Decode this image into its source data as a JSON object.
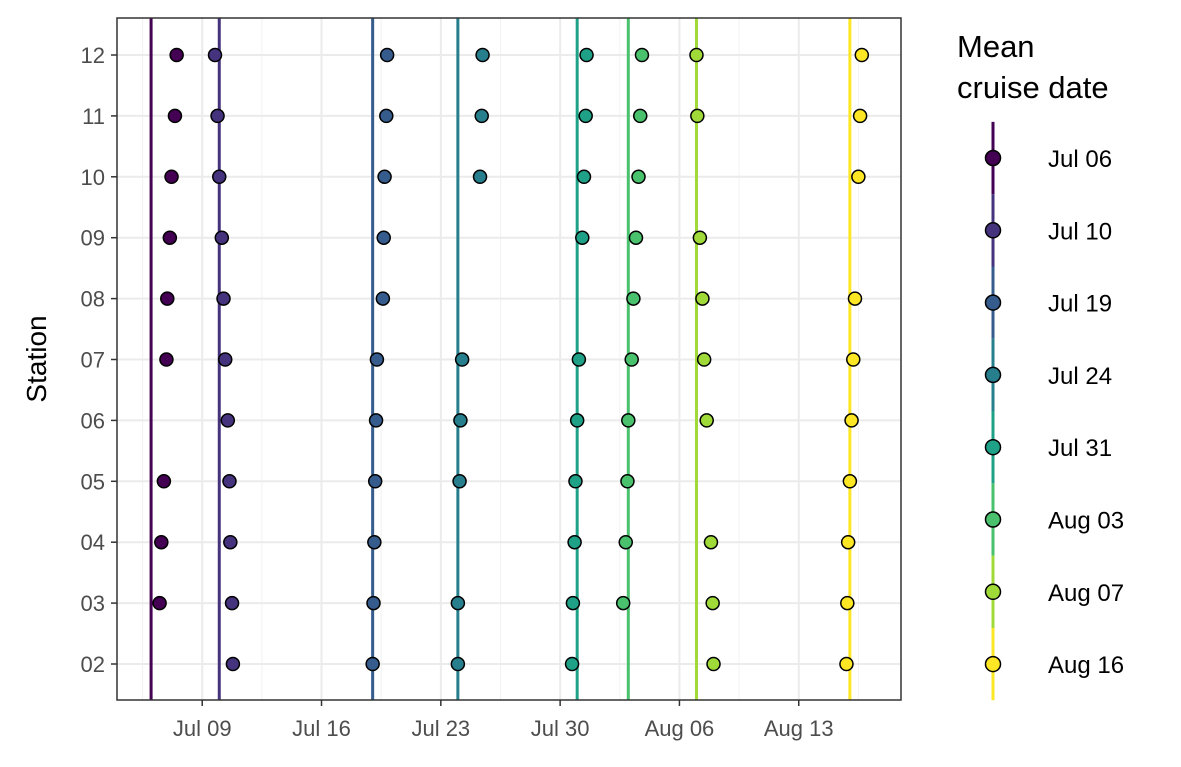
{
  "chart_data": {
    "type": "scatter",
    "ylabel": "Station",
    "xlabel": "",
    "legend_title": [
      "Mean",
      "cruise date"
    ],
    "legend_position": "right",
    "grid": true,
    "x_axis_ticks": [
      "Jul 09",
      "Jul 16",
      "Jul 23",
      "Jul 30",
      "Aug 06",
      "Aug 13"
    ],
    "x_tick_dates": [
      "2021-07-09",
      "2021-07-16",
      "2021-07-23",
      "2021-07-30",
      "2021-08-06",
      "2021-08-13"
    ],
    "xlim": [
      "2021-07-04",
      "2021-08-19"
    ],
    "stations": [
      "02",
      "03",
      "04",
      "05",
      "06",
      "07",
      "08",
      "09",
      "10",
      "11",
      "12"
    ],
    "series": [
      {
        "name": "Jul 06",
        "color": "#440154",
        "mean": "2021-07-06",
        "points": [
          [
            2.5,
            "03"
          ],
          [
            2.6,
            "04"
          ],
          [
            2.75,
            "05"
          ],
          [
            2.9,
            "07"
          ],
          [
            2.95,
            "08"
          ],
          [
            3.1,
            "09"
          ],
          [
            3.2,
            "10"
          ],
          [
            3.4,
            "11"
          ],
          [
            3.5,
            "12"
          ]
        ]
      },
      {
        "name": "Jul 10",
        "color": "#46337e",
        "mean": "2021-07-10",
        "points": [
          [
            6.8,
            "02"
          ],
          [
            6.75,
            "03"
          ],
          [
            6.65,
            "04"
          ],
          [
            6.6,
            "05"
          ],
          [
            6.5,
            "06"
          ],
          [
            6.35,
            "07"
          ],
          [
            6.25,
            "08"
          ],
          [
            6.15,
            "09"
          ],
          [
            6.0,
            "10"
          ],
          [
            5.9,
            "11"
          ],
          [
            5.75,
            "12"
          ]
        ]
      },
      {
        "name": "Jul 19",
        "color": "#365c8d",
        "mean": "2021-07-19",
        "points": [
          [
            15.0,
            "02"
          ],
          [
            15.05,
            "03"
          ],
          [
            15.1,
            "04"
          ],
          [
            15.15,
            "05"
          ],
          [
            15.2,
            "06"
          ],
          [
            15.25,
            "07"
          ],
          [
            15.6,
            "08"
          ],
          [
            15.65,
            "09"
          ],
          [
            15.7,
            "10"
          ],
          [
            15.8,
            "11"
          ],
          [
            15.85,
            "12"
          ]
        ]
      },
      {
        "name": "Jul 24",
        "color": "#277f8e",
        "mean": "2021-07-24",
        "points": [
          [
            20.0,
            "02"
          ],
          [
            20.0,
            "03"
          ],
          [
            20.1,
            "05"
          ],
          [
            20.15,
            "06"
          ],
          [
            20.25,
            "07"
          ],
          [
            21.3,
            "10"
          ],
          [
            21.4,
            "11"
          ],
          [
            21.45,
            "12"
          ]
        ]
      },
      {
        "name": "Jul 31",
        "color": "#1fa187",
        "mean": "2021-07-31",
        "points": [
          [
            26.7,
            "02"
          ],
          [
            26.75,
            "03"
          ],
          [
            26.85,
            "04"
          ],
          [
            26.9,
            "05"
          ],
          [
            27.0,
            "06"
          ],
          [
            27.1,
            "07"
          ],
          [
            27.3,
            "09"
          ],
          [
            27.4,
            "10"
          ],
          [
            27.5,
            "11"
          ],
          [
            27.55,
            "12"
          ]
        ]
      },
      {
        "name": "Aug 03",
        "color": "#4ac16d",
        "mean": "2021-08-03",
        "points": [
          [
            29.7,
            "03"
          ],
          [
            29.85,
            "04"
          ],
          [
            29.95,
            "05"
          ],
          [
            30.0,
            "06"
          ],
          [
            30.2,
            "07"
          ],
          [
            30.3,
            "08"
          ],
          [
            30.45,
            "09"
          ],
          [
            30.6,
            "10"
          ],
          [
            30.7,
            "11"
          ],
          [
            30.8,
            "12"
          ]
        ]
      },
      {
        "name": "Aug 07",
        "color": "#a0da39",
        "mean": "2021-08-07",
        "points": [
          [
            35.0,
            "02"
          ],
          [
            34.95,
            "03"
          ],
          [
            34.85,
            "04"
          ],
          [
            34.6,
            "06"
          ],
          [
            34.45,
            "07"
          ],
          [
            34.35,
            "08"
          ],
          [
            34.2,
            "09"
          ],
          [
            34.05,
            "11"
          ],
          [
            34.0,
            "12"
          ]
        ]
      },
      {
        "name": "Aug 16",
        "color": "#fde725",
        "mean": "2021-08-16",
        "points": [
          [
            42.8,
            "02"
          ],
          [
            42.85,
            "03"
          ],
          [
            42.9,
            "04"
          ],
          [
            43.0,
            "05"
          ],
          [
            43.1,
            "06"
          ],
          [
            43.2,
            "07"
          ],
          [
            43.3,
            "08"
          ],
          [
            43.5,
            "10"
          ],
          [
            43.6,
            "11"
          ],
          [
            43.7,
            "12"
          ]
        ]
      }
    ]
  }
}
